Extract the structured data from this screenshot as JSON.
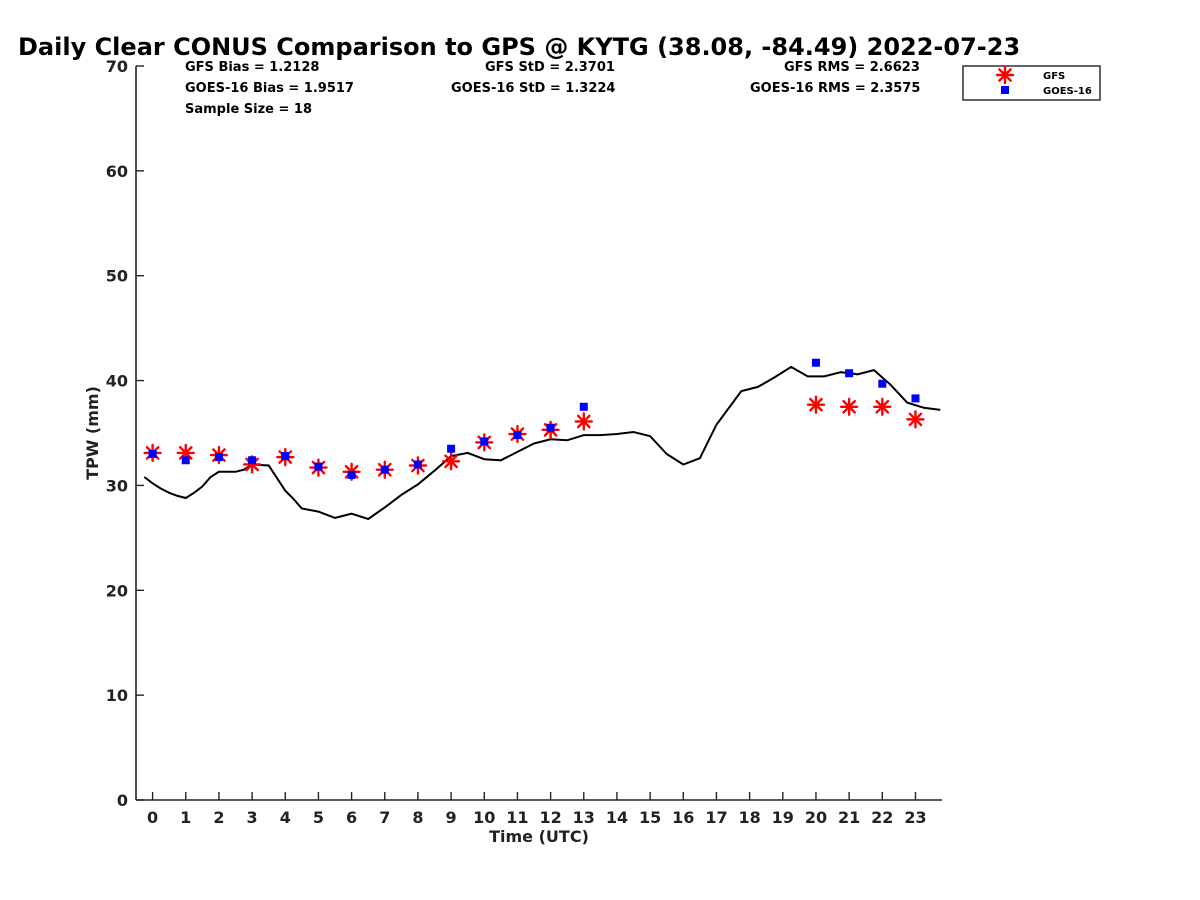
{
  "chart_data": {
    "type": "scatter",
    "title": "Daily Clear CONUS Comparison to GPS @ KYTG (38.08, -84.49) 2022-07-23",
    "xlabel": "Time (UTC)",
    "ylabel": "TPW (mm)",
    "xlim": [
      -0.5,
      23.8
    ],
    "ylim": [
      0,
      70
    ],
    "x_ticks": [
      0,
      1,
      2,
      3,
      4,
      5,
      6,
      7,
      8,
      9,
      10,
      11,
      12,
      13,
      14,
      15,
      16,
      17,
      18,
      19,
      20,
      21,
      22,
      23
    ],
    "y_ticks": [
      0,
      10,
      20,
      30,
      40,
      50,
      60,
      70
    ],
    "grid": false,
    "legend_position": "top-right",
    "stats": {
      "gfs_bias": "GFS Bias = 1.2128",
      "goes_bias": "GOES-16 Bias = 1.9517",
      "sample_size": "Sample Size = 18",
      "gfs_std": "GFS StD = 2.3701",
      "goes_std": "GOES-16 StD = 1.3224",
      "gfs_rms": "GFS RMS = 2.6623",
      "goes_rms": "GOES-16 RMS = 2.3575"
    },
    "series": [
      {
        "name": "GFS",
        "marker": "asterisk",
        "color": "#ff0000",
        "points": [
          [
            0,
            33.1
          ],
          [
            1,
            33.1
          ],
          [
            2,
            32.9
          ],
          [
            3,
            32.0
          ],
          [
            4,
            32.7
          ],
          [
            5,
            31.7
          ],
          [
            6,
            31.3
          ],
          [
            7,
            31.5
          ],
          [
            8,
            31.9
          ],
          [
            9,
            32.3
          ],
          [
            10,
            34.1
          ],
          [
            11,
            34.9
          ],
          [
            12,
            35.3
          ],
          [
            13,
            36.1
          ],
          [
            20,
            37.7
          ],
          [
            21,
            37.5
          ],
          [
            22,
            37.5
          ],
          [
            23,
            36.3
          ]
        ]
      },
      {
        "name": "GOES-16",
        "marker": "square",
        "color": "#0000ff",
        "points": [
          [
            0,
            33.0
          ],
          [
            1,
            32.4
          ],
          [
            2,
            32.7
          ],
          [
            3,
            32.4
          ],
          [
            4,
            32.8
          ],
          [
            5,
            31.8
          ],
          [
            6,
            31.0
          ],
          [
            7,
            31.5
          ],
          [
            8,
            32.0
          ],
          [
            9,
            33.5
          ],
          [
            10,
            34.2
          ],
          [
            11,
            34.8
          ],
          [
            12,
            35.5
          ],
          [
            13,
            37.5
          ],
          [
            20,
            41.7
          ],
          [
            21,
            40.7
          ],
          [
            22,
            39.7
          ],
          [
            23,
            38.3
          ]
        ]
      },
      {
        "name": "GPS",
        "marker": "line",
        "color": "#000000",
        "points": [
          [
            -0.25,
            30.8
          ],
          [
            0,
            30.2
          ],
          [
            0.25,
            29.7
          ],
          [
            0.5,
            29.3
          ],
          [
            0.75,
            29.0
          ],
          [
            1,
            28.8
          ],
          [
            1.25,
            29.3
          ],
          [
            1.5,
            29.9
          ],
          [
            1.75,
            30.8
          ],
          [
            2,
            31.3
          ],
          [
            2.25,
            31.3
          ],
          [
            2.5,
            31.3
          ],
          [
            2.75,
            31.5
          ],
          [
            3,
            32.0
          ],
          [
            3.5,
            31.9
          ],
          [
            4,
            29.5
          ],
          [
            4.25,
            28.7
          ],
          [
            4.5,
            27.8
          ],
          [
            5,
            27.5
          ],
          [
            5.5,
            26.9
          ],
          [
            6,
            27.3
          ],
          [
            6.5,
            26.8
          ],
          [
            7,
            27.9
          ],
          [
            7.5,
            29.1
          ],
          [
            8,
            30.1
          ],
          [
            8.5,
            31.4
          ],
          [
            9,
            32.8
          ],
          [
            9.5,
            33.1
          ],
          [
            10,
            32.5
          ],
          [
            10.5,
            32.4
          ],
          [
            11,
            33.2
          ],
          [
            11.5,
            34.0
          ],
          [
            12,
            34.4
          ],
          [
            12.5,
            34.3
          ],
          [
            13,
            34.8
          ],
          [
            13.5,
            34.8
          ],
          [
            14,
            34.9
          ],
          [
            14.5,
            35.1
          ],
          [
            15,
            34.7
          ],
          [
            15.5,
            33.0
          ],
          [
            16,
            32.0
          ],
          [
            16.5,
            32.6
          ],
          [
            17,
            35.8
          ],
          [
            17.75,
            39.0
          ],
          [
            18.25,
            39.4
          ],
          [
            18.75,
            40.3
          ],
          [
            19.25,
            41.3
          ],
          [
            19.75,
            40.4
          ],
          [
            20.25,
            40.4
          ],
          [
            20.75,
            40.8
          ],
          [
            21.25,
            40.6
          ],
          [
            21.75,
            41.0
          ],
          [
            22.25,
            39.6
          ],
          [
            22.75,
            37.9
          ],
          [
            23.25,
            37.4
          ],
          [
            23.75,
            37.2
          ]
        ]
      }
    ]
  }
}
